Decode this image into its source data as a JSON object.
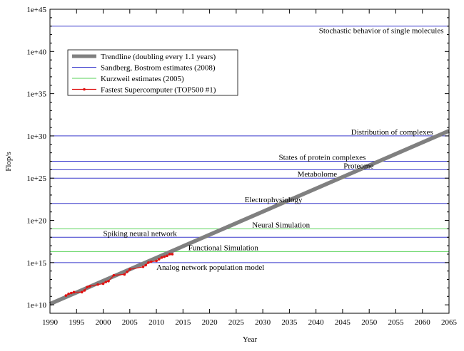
{
  "chart_data": {
    "type": "line",
    "title": "",
    "xlabel": "Year",
    "ylabel": "Flop/s",
    "xlim": [
      1990,
      2065
    ],
    "ylim_log10": [
      9,
      45
    ],
    "y_scale": "log",
    "x_ticks": [
      "1990",
      "1995",
      "2000",
      "2005",
      "2010",
      "2015",
      "2020",
      "2025",
      "2030",
      "2035",
      "2040",
      "2045",
      "2050",
      "2055",
      "2060",
      "2065"
    ],
    "x_tick_values": [
      1990,
      1995,
      2000,
      2005,
      2010,
      2015,
      2020,
      2025,
      2030,
      2035,
      2040,
      2045,
      2050,
      2055,
      2060,
      2065
    ],
    "y_ticks": [
      "1e+10",
      "1e+15",
      "1e+20",
      "1e+25",
      "1e+30",
      "1e+35",
      "1e+40",
      "1e+45"
    ],
    "y_tick_exponents": [
      10,
      15,
      20,
      25,
      30,
      35,
      40,
      45
    ],
    "legend_placement": "top-left",
    "grid": false,
    "legend": [
      {
        "label": "Trendline (doubling every 1.1 years)",
        "color": "#808080",
        "style": "thick-line"
      },
      {
        "label": "Sandberg, Bostrom estimates (2008)",
        "color": "#3a3acc",
        "style": "line"
      },
      {
        "label": "Kurzweil estimates (2005)",
        "color": "#5ad25a",
        "style": "line"
      },
      {
        "label": "Fastest Supercomputer (TOP500 #1)",
        "color": "#e01010",
        "style": "line-points"
      }
    ],
    "trendline": {
      "label": "Trendline (doubling every 1.1 years)",
      "x": [
        1990,
        2065
      ],
      "log10_y": [
        10.1,
        30.6
      ]
    },
    "sandberg_bostrom_levels": [
      {
        "label": "Stochastic behavior of single molecules",
        "log10_flops": 43
      },
      {
        "label": "Distribution of complexes",
        "log10_flops": 30
      },
      {
        "label": "States of protein complexes",
        "log10_flops": 27
      },
      {
        "label": "Proteome",
        "log10_flops": 26
      },
      {
        "label": "Metabolome",
        "log10_flops": 25
      },
      {
        "label": "Electrophysiology",
        "log10_flops": 22
      },
      {
        "label": "Spiking neural network",
        "log10_flops": 18
      },
      {
        "label": "Analog network population model",
        "log10_flops": 15
      }
    ],
    "kurzweil_levels": [
      {
        "label": "Neural Simulation",
        "log10_flops": 19
      },
      {
        "label": "Functional Simulation",
        "log10_flops": 16.3
      }
    ],
    "supercomputer": {
      "label": "Fastest Supercomputer (TOP500 #1)",
      "x": [
        1993,
        1993.5,
        1994,
        1994.5,
        1996,
        1996.5,
        1997,
        1997.5,
        1999,
        2000,
        2000.5,
        2001,
        2002,
        2004,
        2004.5,
        2005,
        2007.5,
        2008,
        2008.5,
        2009,
        2010,
        2010.5,
        2011,
        2011.5,
        2012,
        2012.5,
        2013
      ],
      "log10_y": [
        11.1,
        11.3,
        11.4,
        11.5,
        11.5,
        11.7,
        12.1,
        12.2,
        12.4,
        12.5,
        12.7,
        12.8,
        13.5,
        13.6,
        13.9,
        14.2,
        14.5,
        14.7,
        15.0,
        15.1,
        15.2,
        15.4,
        15.6,
        15.7,
        15.8,
        16.0,
        16.0
      ]
    }
  }
}
